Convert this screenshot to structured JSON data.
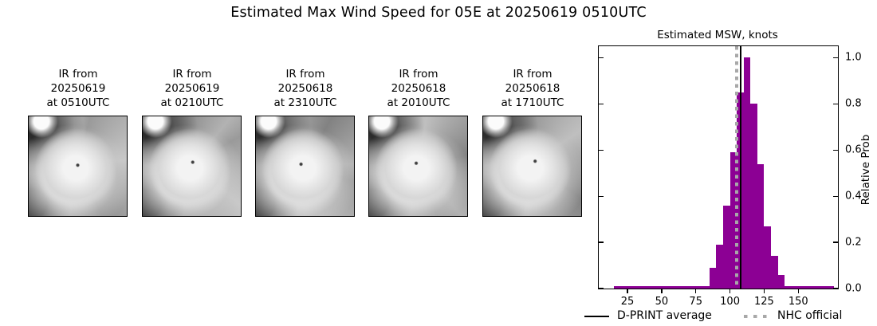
{
  "title": "Estimated Max Wind Speed for 05E at 20250619 0510UTC",
  "satellite_images": [
    {
      "caption_line1": "IR from",
      "caption_line2": "20250619",
      "caption_line3": "at 0510UTC"
    },
    {
      "caption_line1": "IR from",
      "caption_line2": "20250619",
      "caption_line3": "at 0210UTC"
    },
    {
      "caption_line1": "IR from",
      "caption_line2": "20250618",
      "caption_line3": "at 2310UTC"
    },
    {
      "caption_line1": "IR from",
      "caption_line2": "20250618",
      "caption_line3": "at 2010UTC"
    },
    {
      "caption_line1": "IR from",
      "caption_line2": "20250618",
      "caption_line3": "at 1710UTC"
    }
  ],
  "chart": {
    "title": "Estimated MSW, knots",
    "ylabel_right": "Relative Prob",
    "legend": [
      {
        "label": "D-PRINT average",
        "swatch": "black-solid-line"
      },
      {
        "label": "NHC official",
        "swatch": "gray-dotted-line"
      }
    ]
  },
  "chart_data": {
    "type": "bar",
    "subtype": "histogram",
    "title": "Estimated MSW, knots",
    "xlabel": "Estimated MSW, knots",
    "ylabel": "Relative Prob",
    "xlim": [
      4,
      179
    ],
    "ylim": [
      0,
      1.05
    ],
    "x_ticks": [
      25,
      50,
      75,
      100,
      125,
      150
    ],
    "y_ticks": [
      0.0,
      0.2,
      0.4,
      0.6,
      0.8,
      1.0
    ],
    "y_tick_labels": [
      "0.0",
      "0.2",
      "0.4",
      "0.6",
      "0.8",
      "1.0"
    ],
    "grid": false,
    "legend_position": "below",
    "bar_color": "#8C0094",
    "bins": {
      "start": 85,
      "width": 5,
      "values": [
        0.09,
        0.19,
        0.36,
        0.59,
        0.85,
        1.0,
        0.8,
        0.54,
        0.27,
        0.14,
        0.06
      ]
    },
    "baseline": {
      "start": 15,
      "end": 176,
      "prob": 0.01
    },
    "vlines": [
      {
        "label": "D-PRINT average",
        "x": 108,
        "color": "#000000",
        "style": "solid"
      },
      {
        "label": "NHC official",
        "x": 105,
        "color": "#a8a8a8",
        "style": "dotted"
      }
    ]
  }
}
